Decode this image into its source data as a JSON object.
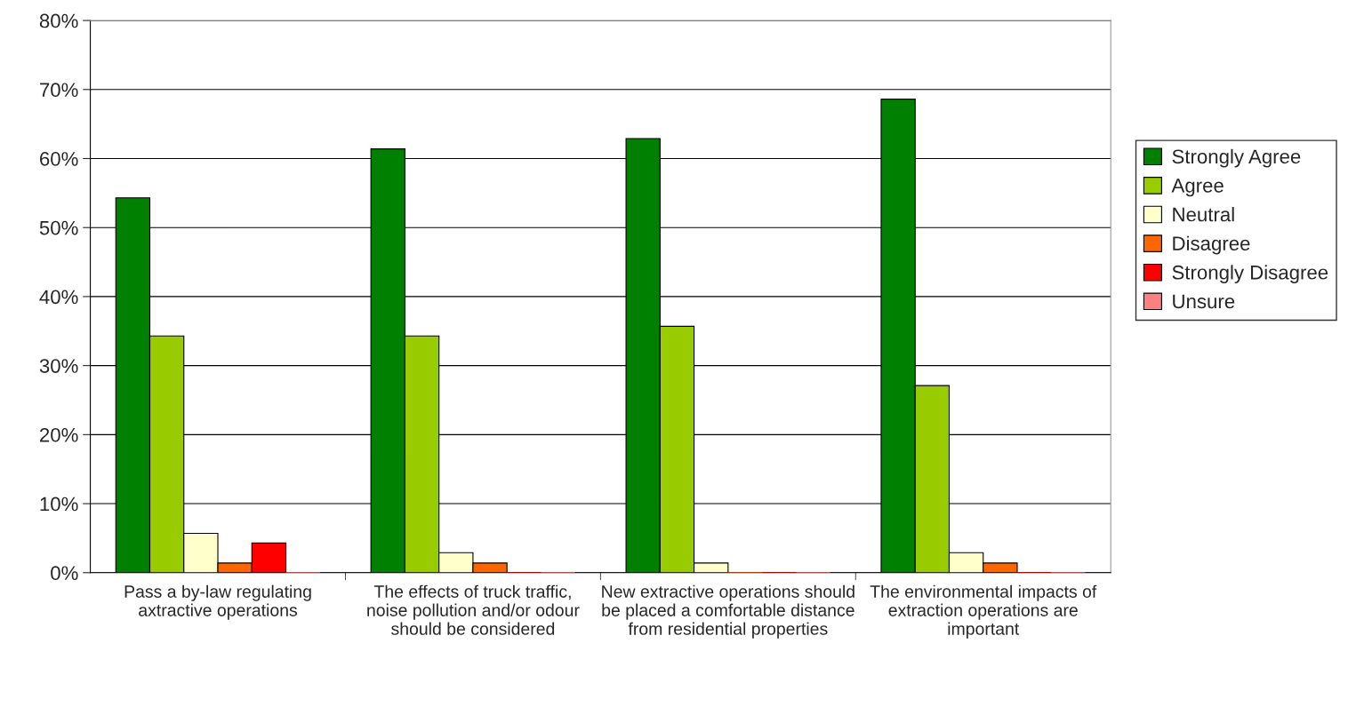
{
  "chart_data": {
    "type": "bar",
    "categories": [
      "Pass a by-law regulating axtractive operations",
      "The effects of truck traffic, noise pollution and/or odour should be considered",
      "New extractive operations should be placed a comfortable distance from residential properties",
      "The environmental impacts of extraction operations are important"
    ],
    "series": [
      {
        "name": "Strongly Agree",
        "color": "#008000",
        "values": [
          54.3,
          61.4,
          62.9,
          68.6
        ]
      },
      {
        "name": "Agree",
        "color": "#99cc00",
        "values": [
          34.3,
          34.3,
          35.7,
          27.1
        ]
      },
      {
        "name": "Neutral",
        "color": "#ffffcc",
        "values": [
          5.7,
          2.9,
          1.4,
          2.9
        ]
      },
      {
        "name": "Disagree",
        "color": "#ff6600",
        "values": [
          1.4,
          1.4,
          0,
          1.4
        ]
      },
      {
        "name": "Strongly Disagree",
        "color": "#ff0000",
        "values": [
          4.3,
          0,
          0,
          0
        ]
      },
      {
        "name": "Unsure",
        "color": "#ff8080",
        "values": [
          0,
          0,
          0,
          0
        ]
      }
    ],
    "ylim": [
      0,
      80
    ],
    "yticks": [
      {
        "value": 0,
        "label": "0%"
      },
      {
        "value": 10,
        "label": "10%"
      },
      {
        "value": 20,
        "label": "20%"
      },
      {
        "value": 30,
        "label": "30%"
      },
      {
        "value": 40,
        "label": "40%"
      },
      {
        "value": 50,
        "label": "50%"
      },
      {
        "value": 60,
        "label": "60%"
      },
      {
        "value": 70,
        "label": "70%"
      },
      {
        "value": 80,
        "label": "80%"
      }
    ],
    "grid": "y",
    "legend": "right"
  }
}
